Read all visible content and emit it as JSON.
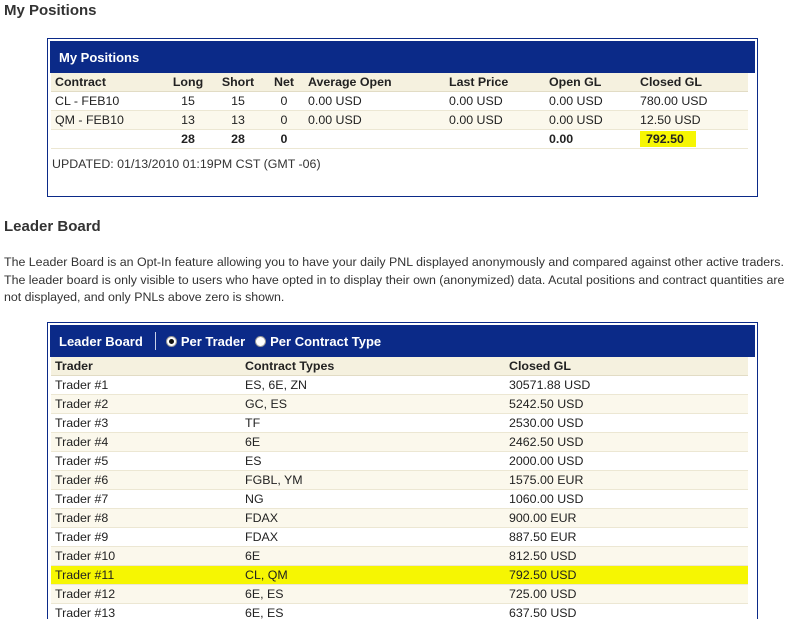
{
  "positions_section": {
    "heading": "My Positions",
    "panel_title": "My Positions",
    "columns": [
      "Contract",
      "Long",
      "Short",
      "Net",
      "Average Open",
      "Last Price",
      "Open GL",
      "Closed GL"
    ],
    "rows": [
      [
        "CL - FEB10",
        "15",
        "15",
        "0",
        "0.00 USD",
        "0.00 USD",
        "0.00 USD",
        "780.00 USD"
      ],
      [
        "QM - FEB10",
        "13",
        "13",
        "0",
        "0.00 USD",
        "0.00 USD",
        "0.00 USD",
        "12.50 USD"
      ]
    ],
    "totals": [
      "",
      "28",
      "28",
      "0",
      "",
      "",
      "0.00",
      "792.50"
    ],
    "updated": "UPDATED: 01/13/2010 01:19PM CST (GMT -06)",
    "highlight_color": "#f6f602"
  },
  "leader_section": {
    "heading": "Leader Board",
    "intro": "The Leader Board is an Opt-In feature allowing you to have your daily PNL displayed anonymously and compared against other active traders. The leader board is only visible to users who have opted in to display their own (anonymized) data. Acutal positions and contract quantities are not displayed, and only PNLs above zero is shown.",
    "panel_title": "Leader Board",
    "radio_per_trader": "Per Trader",
    "radio_per_contract": "Per Contract Type",
    "selected": "Per Trader",
    "columns": [
      "Trader",
      "Contract Types",
      "Closed GL"
    ],
    "rows": [
      [
        "Trader #1",
        "ES, 6E, ZN",
        "30571.88 USD"
      ],
      [
        "Trader #2",
        "GC, ES",
        "5242.50 USD"
      ],
      [
        "Trader #3",
        "TF",
        "2530.00 USD"
      ],
      [
        "Trader #4",
        "6E",
        "2462.50 USD"
      ],
      [
        "Trader #5",
        "ES",
        "2000.00 USD"
      ],
      [
        "Trader #6",
        "FGBL, YM",
        "1575.00 EUR"
      ],
      [
        "Trader #7",
        "NG",
        "1060.00 USD"
      ],
      [
        "Trader #8",
        "FDAX",
        "900.00 EUR"
      ],
      [
        "Trader #9",
        "FDAX",
        "887.50 EUR"
      ],
      [
        "Trader #10",
        "6E",
        "812.50 USD"
      ],
      [
        "Trader #11",
        "CL, QM",
        "792.50 USD"
      ],
      [
        "Trader #12",
        "6E, ES",
        "725.00 USD"
      ],
      [
        "Trader #13",
        "6E, ES",
        "637.50 USD"
      ]
    ],
    "highlighted_row": "Trader #11"
  },
  "colors": {
    "panel_header": "#0b2a88",
    "row_alt": "#fbf8ec",
    "highlight": "#f6f602"
  }
}
